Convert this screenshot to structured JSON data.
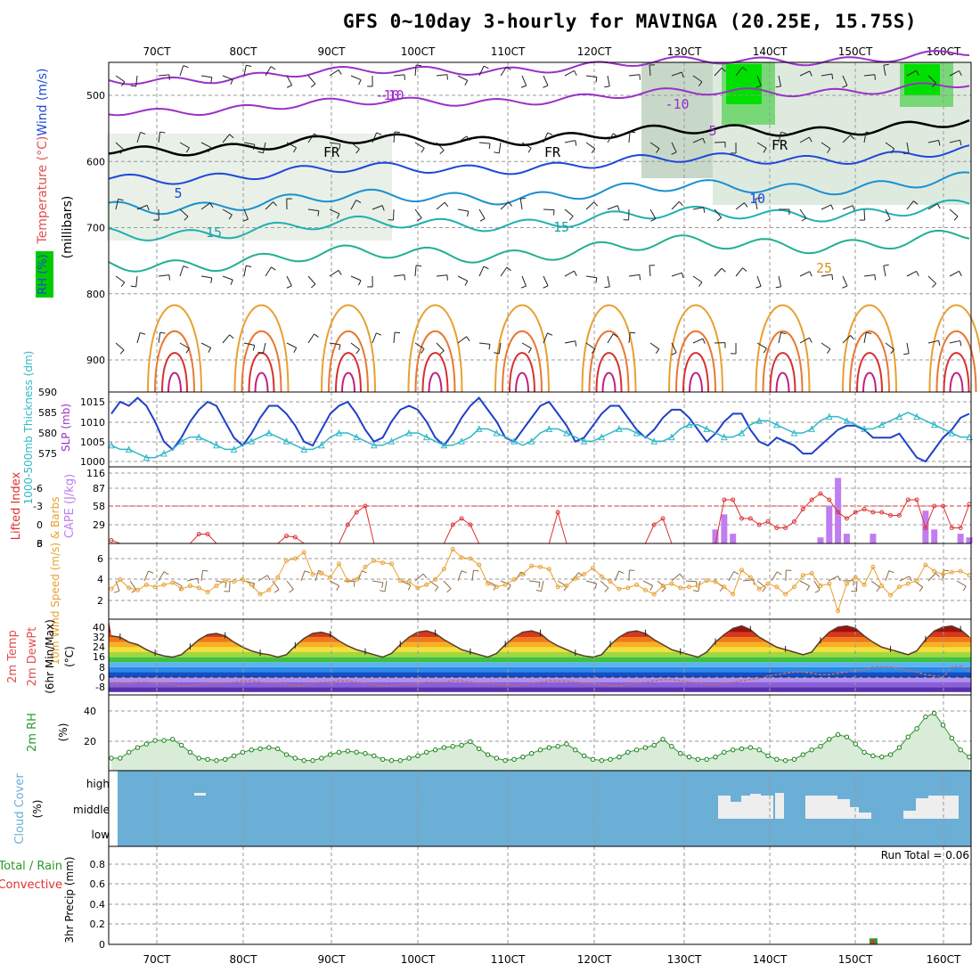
{
  "title": "GFS 0~10day 3-hourly for MAVINGA (20.25E, 15.75S)",
  "x_ticks": [
    "70CT",
    "80CT",
    "90CT",
    "100CT",
    "110CT",
    "120CT",
    "130CT",
    "140CT",
    "150CT",
    "160CT"
  ],
  "colors": {
    "grid": "#999999",
    "rh_green": "#00cc00",
    "cloud_blue": "#6baed6",
    "cape_purple": "#c07df0",
    "li_red": "#e03030",
    "wind_orange": "#e8a030",
    "rh2m_green": "#2a9a2a",
    "slp_blue": "#1f3fc8",
    "thick_cyan": "#30b8c8"
  },
  "chart_data": [
    {
      "type": "contour",
      "panel": "upper-air",
      "ylabel_parts": [
        "RH (%)",
        "Temperature (°C)",
        "Wind (m/s)"
      ],
      "ylabel_units": "(millibars)",
      "y_ticks": [
        500,
        600,
        700,
        800,
        900
      ],
      "ylim": [
        1000,
        450
      ],
      "temperature_labels": [
        "-10",
        "-10",
        "-10",
        "5",
        "5",
        "10",
        "15",
        "15",
        "25",
        "FR",
        "FR",
        "FR"
      ],
      "freezing_level_mb": 590
    },
    {
      "type": "line",
      "panel": "slp-thickness",
      "ylabel_left": "1000-500mb Thickness (dm)",
      "ylabel_right": "SLP (mb)",
      "y_ticks_left": [
        "590",
        "585",
        "580",
        "575"
      ],
      "y_ticks_right": [
        "1015",
        "1010",
        "1005",
        "1000"
      ],
      "series": [
        {
          "name": "SLP (mb)",
          "values": [
            1012,
            1015,
            1014,
            1016,
            1014,
            1010,
            1005,
            1003,
            1006,
            1010,
            1013,
            1015,
            1014,
            1010,
            1006,
            1004,
            1007,
            1011,
            1014,
            1014,
            1012,
            1009,
            1005,
            1004,
            1008,
            1012,
            1014,
            1015,
            1012,
            1008,
            1005,
            1006,
            1010,
            1013,
            1014,
            1013,
            1010,
            1006,
            1004,
            1007,
            1011,
            1014,
            1016,
            1013,
            1010,
            1006,
            1005,
            1008,
            1011,
            1014,
            1015,
            1012,
            1009,
            1005,
            1006,
            1009,
            1012,
            1014,
            1014,
            1011,
            1008,
            1006,
            1008,
            1011,
            1013,
            1013,
            1011,
            1008,
            1005,
            1007,
            1010,
            1012,
            1012,
            1008,
            1005,
            1004,
            1006,
            1005,
            1004,
            1002,
            1002,
            1004,
            1006,
            1008,
            1009,
            1009,
            1008,
            1006,
            1006,
            1006,
            1007,
            1004,
            1001,
            1000,
            1003,
            1006,
            1008,
            1011,
            1012
          ]
        },
        {
          "name": "1000-500mb Thickness (dm)",
          "values": [
            577,
            576,
            576,
            575,
            574,
            574,
            575,
            576,
            578,
            579,
            579,
            578,
            577,
            576,
            576,
            577,
            578,
            579,
            580,
            579,
            578,
            577,
            576,
            576,
            577,
            579,
            580,
            580,
            579,
            578,
            577,
            577,
            578,
            579,
            580,
            580,
            579,
            578,
            577,
            577,
            578,
            579,
            581,
            581,
            580,
            579,
            578,
            577,
            578,
            580,
            581,
            581,
            580,
            579,
            578,
            578,
            579,
            580,
            581,
            581,
            580,
            579,
            578,
            578,
            579,
            581,
            582,
            582,
            581,
            580,
            579,
            579,
            580,
            582,
            583,
            583,
            582,
            581,
            580,
            580,
            581,
            583,
            584,
            584,
            583,
            582,
            581,
            581,
            582,
            583,
            584,
            585,
            584,
            583,
            582,
            581,
            580,
            579,
            579
          ]
        }
      ]
    },
    {
      "type": "bar",
      "panel": "lifted-index-cape",
      "ylabel_left": "Lifted Index",
      "ylabel_right": "CAPE (J/kg)",
      "y_ticks_left": [
        "-6",
        "-3",
        "0",
        "3",
        "6"
      ],
      "y_ticks_right": [
        "116",
        "87",
        "58",
        "29"
      ],
      "series": [
        {
          "name": "CAPE (J/kg)",
          "values": [
            0,
            0,
            0,
            0,
            0,
            0,
            0,
            0,
            0,
            0,
            0,
            0,
            0,
            0,
            0,
            0,
            0,
            0,
            0,
            0,
            0,
            0,
            0,
            0,
            0,
            0,
            0,
            0,
            0,
            0,
            0,
            0,
            0,
            0,
            0,
            0,
            0,
            0,
            0,
            0,
            0,
            0,
            0,
            0,
            0,
            0,
            0,
            0,
            0,
            0,
            0,
            0,
            0,
            0,
            0,
            0,
            0,
            0,
            0,
            0,
            0,
            0,
            0,
            0,
            0,
            0,
            0,
            0,
            0,
            23,
            48,
            16,
            0,
            0,
            0,
            0,
            0,
            0,
            0,
            0,
            0,
            10,
            62,
            108,
            16,
            0,
            0,
            16,
            0,
            0,
            0,
            0,
            0,
            54,
            23,
            0,
            0,
            16,
            10
          ]
        },
        {
          "name": "Lifted Index",
          "values": [
            5.5,
            6,
            6,
            6,
            6,
            6,
            6,
            6,
            6,
            6,
            4.5,
            4.5,
            6,
            6,
            6,
            6,
            6,
            6,
            6,
            6,
            4.8,
            5,
            6,
            6,
            6,
            6,
            6,
            3,
            1,
            0,
            6,
            6,
            6,
            6,
            6,
            6,
            6,
            6,
            6,
            3,
            2,
            3,
            6,
            6,
            6,
            6,
            6,
            6,
            6,
            6,
            6,
            1,
            6,
            6,
            6,
            6,
            6,
            6,
            6,
            6,
            6,
            6,
            3,
            2,
            6,
            6,
            6,
            6,
            6,
            6,
            -1,
            -1,
            2,
            2,
            3,
            2.5,
            3.5,
            3.5,
            2.5,
            0.5,
            -1,
            -2,
            -1,
            1,
            2,
            1,
            0.5,
            1,
            1,
            1.5,
            1.5,
            -1,
            -1,
            3.5,
            0,
            0,
            3.5,
            3.5,
            -0.3
          ]
        }
      ]
    },
    {
      "type": "line",
      "panel": "10m-wind",
      "ylabel": "10m Wind Speed (m/s) & Barbs",
      "y_ticks": [
        "6",
        "4",
        "2"
      ],
      "series": [
        {
          "name": "10m Wind Speed",
          "values": [
            3.1,
            4.0,
            3.2,
            3.0,
            3.5,
            3.3,
            3.5,
            3.7,
            3.1,
            3.4,
            3.2,
            2.8,
            3.4,
            3.9,
            3.8,
            4.0,
            3.5,
            2.6,
            3.0,
            4.2,
            5.8,
            6.0,
            6.6,
            4.5,
            4.6,
            4.2,
            5.5,
            3.9,
            4.0,
            5.2,
            5.8,
            5.6,
            5.5,
            3.9,
            3.8,
            3.2,
            3.5,
            4.0,
            5.0,
            6.9,
            6.1,
            6.0,
            5.4,
            3.6,
            3.3,
            3.5,
            4.0,
            4.5,
            5.3,
            5.2,
            5.0,
            3.3,
            3.4,
            4.1,
            4.5,
            5.1,
            4.3,
            3.8,
            3.1,
            3.2,
            3.5,
            3.0,
            2.6,
            3.4,
            3.6,
            3.2,
            3.3,
            3.4,
            3.9,
            3.8,
            3.3,
            2.6,
            4.9,
            4.2,
            3.1,
            3.6,
            3.3,
            2.6,
            3.3,
            4.4,
            4.6,
            3.4,
            3.6,
            1.0,
            3.6,
            4.2,
            3.5,
            5.2,
            3.4,
            2.5,
            3.3,
            3.6,
            3.9,
            5.4,
            4.8,
            4.5,
            4.7,
            4.8,
            4.4
          ]
        }
      ]
    },
    {
      "type": "area",
      "panel": "2m-temp-dewpoint",
      "ylabel": "2m Temp 2m DewPt (6hr Min/Max) (°C)",
      "y_ticks": [
        "40",
        "32",
        "24",
        "16",
        "8",
        "0",
        "-8"
      ],
      "series": [
        {
          "name": "2m Temp",
          "values": [
            33,
            32,
            28,
            26,
            22,
            19,
            17,
            16,
            18,
            24,
            30,
            34,
            35,
            33,
            28,
            24,
            21,
            19,
            18,
            16,
            18,
            25,
            31,
            35,
            36,
            34,
            29,
            25,
            22,
            20,
            18,
            16,
            19,
            26,
            32,
            36,
            37,
            35,
            30,
            26,
            22,
            20,
            18,
            16,
            19,
            26,
            32,
            36,
            37,
            35,
            29,
            25,
            22,
            19,
            17,
            16,
            18,
            26,
            32,
            36,
            37,
            35,
            30,
            26,
            22,
            20,
            18,
            16,
            20,
            28,
            34,
            39,
            41,
            38,
            32,
            28,
            24,
            22,
            20,
            18,
            20,
            29,
            36,
            40,
            41,
            39,
            33,
            28,
            24,
            22,
            20,
            18,
            21,
            30,
            37,
            40,
            41,
            38,
            32
          ]
        },
        {
          "name": "2m DewPt",
          "values": [
            -6,
            -5,
            -5,
            -4,
            -4,
            -5,
            -5,
            -6,
            -7,
            -7,
            -6,
            -5,
            -5,
            -5,
            -4,
            -3,
            -3,
            -4,
            -5,
            -5,
            -6,
            -7,
            -7,
            -5,
            -4,
            -4,
            -3,
            -3,
            -4,
            -5,
            -6,
            -7,
            -7,
            -6,
            -6,
            -5,
            -4,
            -4,
            -4,
            -3,
            -3,
            -4,
            -5,
            -5,
            -6,
            -6,
            -7,
            -6,
            -5,
            -4,
            -3,
            -3,
            -3,
            -4,
            -5,
            -5,
            -6,
            -7,
            -7,
            -6,
            -5,
            -4,
            -3,
            -2,
            -2,
            -3,
            -4,
            -5,
            -6,
            -6,
            -5,
            -4,
            -3,
            -2,
            -1,
            1,
            2,
            3,
            4,
            4,
            3,
            2,
            2,
            3,
            4,
            5,
            6,
            8,
            8,
            8,
            7,
            5,
            4,
            2,
            1,
            0,
            8,
            9,
            5
          ]
        }
      ]
    },
    {
      "type": "area",
      "panel": "2m-rh",
      "ylabel": "2m RH (%)",
      "y_ticks": [
        "40",
        "20"
      ],
      "series": [
        {
          "name": "2m RH",
          "values": [
            10,
            10,
            15,
            19,
            22,
            25,
            25,
            26,
            21,
            15,
            10,
            9,
            8,
            9,
            12,
            15,
            17,
            18,
            19,
            18,
            13,
            10,
            8,
            8,
            10,
            13,
            15,
            16,
            15,
            14,
            12,
            9,
            8,
            8,
            10,
            12,
            15,
            17,
            19,
            20,
            21,
            24,
            18,
            13,
            10,
            8,
            9,
            11,
            14,
            17,
            19,
            20,
            22,
            17,
            12,
            9,
            8,
            9,
            11,
            15,
            17,
            19,
            21,
            26,
            20,
            14,
            11,
            9,
            9,
            11,
            15,
            17,
            18,
            19,
            17,
            12,
            9,
            8,
            9,
            13,
            17,
            20,
            26,
            30,
            28,
            22,
            15,
            12,
            11,
            13,
            19,
            28,
            35,
            45,
            48,
            38,
            27,
            17,
            11
          ]
        }
      ]
    },
    {
      "type": "heatmap",
      "panel": "cloud-cover",
      "ylabel": "Cloud Cover (%)",
      "levels": [
        "high",
        "middle",
        "low"
      ]
    },
    {
      "type": "bar",
      "panel": "precip",
      "ylabel": "3hr Precip (mm)",
      "legend": [
        "Total / Rain",
        "Convective"
      ],
      "annotation": "Run Total = 0.06",
      "y_ticks": [
        "0.8",
        "0.6",
        "0.4",
        "0.2",
        "0"
      ],
      "series": [
        {
          "name": "Total / Rain",
          "values": [
            0,
            0,
            0,
            0,
            0,
            0,
            0,
            0,
            0,
            0,
            0,
            0,
            0,
            0,
            0,
            0,
            0,
            0,
            0,
            0,
            0,
            0,
            0,
            0,
            0,
            0,
            0,
            0,
            0,
            0,
            0,
            0,
            0,
            0,
            0,
            0,
            0,
            0,
            0,
            0,
            0,
            0,
            0,
            0,
            0,
            0,
            0,
            0,
            0,
            0,
            0,
            0,
            0,
            0,
            0,
            0,
            0,
            0,
            0,
            0,
            0,
            0,
            0,
            0,
            0,
            0,
            0,
            0,
            0,
            0,
            0,
            0,
            0,
            0,
            0,
            0,
            0,
            0,
            0,
            0,
            0,
            0,
            0,
            0,
            0,
            0,
            0,
            0.06,
            0,
            0,
            0,
            0,
            0,
            0,
            0,
            0,
            0,
            0,
            0
          ]
        },
        {
          "name": "Convective",
          "values": [
            0,
            0,
            0,
            0,
            0,
            0,
            0,
            0,
            0,
            0,
            0,
            0,
            0,
            0,
            0,
            0,
            0,
            0,
            0,
            0,
            0,
            0,
            0,
            0,
            0,
            0,
            0,
            0,
            0,
            0,
            0,
            0,
            0,
            0,
            0,
            0,
            0,
            0,
            0,
            0,
            0,
            0,
            0,
            0,
            0,
            0,
            0,
            0,
            0,
            0,
            0,
            0,
            0,
            0,
            0,
            0,
            0,
            0,
            0,
            0,
            0,
            0,
            0,
            0,
            0,
            0,
            0,
            0,
            0,
            0,
            0,
            0,
            0,
            0,
            0,
            0,
            0,
            0,
            0,
            0,
            0,
            0,
            0,
            0,
            0,
            0,
            0,
            0.04,
            0,
            0,
            0,
            0,
            0,
            0,
            0,
            0,
            0,
            0,
            0
          ]
        }
      ]
    }
  ]
}
